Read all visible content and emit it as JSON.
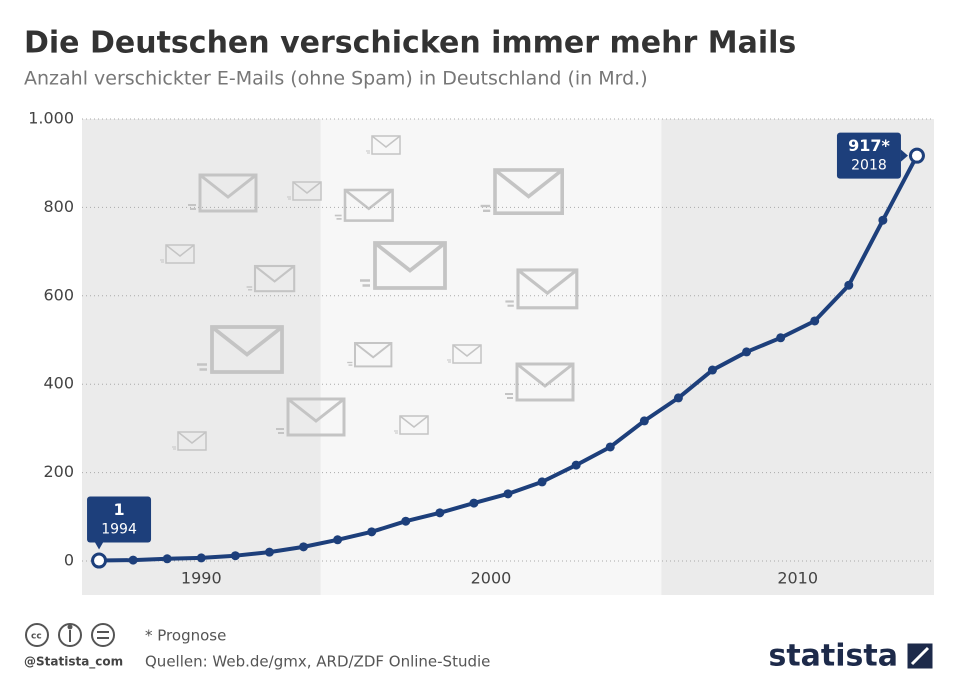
{
  "chart_data": {
    "type": "line",
    "title": "Die Deutschen verschicken immer mehr Mails",
    "subtitle": "Anzahl verschickter E-Mails (ohne Spam) in Deutschland (in Mrd.)",
    "x": [
      1994,
      1995,
      1996,
      1997,
      1998,
      1999,
      2000,
      2001,
      2002,
      2003,
      2004,
      2005,
      2006,
      2007,
      2008,
      2009,
      2010,
      2011,
      2012,
      2013,
      2014,
      2015,
      2016,
      2017,
      2018
    ],
    "series": [
      {
        "name": "E-Mails",
        "color": "#1d3f7b",
        "values": [
          1,
          2,
          5,
          7,
          12,
          20,
          32,
          48,
          66,
          90,
          109,
          131,
          152,
          179,
          217,
          258,
          317,
          369,
          432,
          473,
          505,
          543,
          624,
          771,
          917
        ]
      }
    ],
    "xlim": [
      1993.5,
      2018.5
    ],
    "ylim": [
      0,
      1000
    ],
    "yticks": [
      0,
      200,
      400,
      600,
      800,
      {
        "value": 1000,
        "label": "1.000"
      }
    ],
    "bands": [
      {
        "label": "1990",
        "from": 1993.5,
        "to": 2000.5,
        "shaded": true
      },
      {
        "label": "2000",
        "from": 2000.5,
        "to": 2010.5,
        "shaded": false
      },
      {
        "label": "2010",
        "from": 2010.5,
        "to": 2018.5,
        "shaded": true
      }
    ],
    "grid": true,
    "annotations": [
      {
        "x": 1994,
        "label": "1"
      },
      {
        "x": 2018,
        "label": "917*"
      }
    ],
    "note": "* Prognose",
    "source": "Quellen: Web.de/gmx, ARD/ZDF Online-Studie",
    "handle": "@Statista_com",
    "brand": "statista"
  }
}
